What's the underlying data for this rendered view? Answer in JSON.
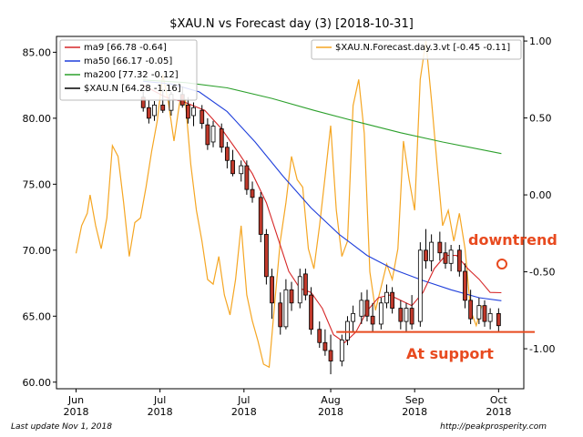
{
  "chart_data": {
    "type": "candlestick",
    "title": "$XAU.N vs Forecast day (3)  [2018-10-31]",
    "xlabel": "",
    "ylabel": "",
    "x_ticks": [
      {
        "label": "Jun\n2018",
        "date": "2018-06-01"
      },
      {
        "label": "Jul\n2018",
        "date": "2018-07-01"
      },
      {
        "label": "Jul\n2018",
        "date": "2018-07-31"
      },
      {
        "label": "Aug\n2018",
        "date": "2018-08-31"
      },
      {
        "label": "Sep\n2018",
        "date": "2018-09-30"
      },
      {
        "label": "Oct\n2018",
        "date": "2018-10-30"
      }
    ],
    "x_range": [
      "2018-05-25",
      "2018-11-08"
    ],
    "y_left": {
      "range": [
        59.5,
        86.2
      ],
      "ticks": [
        "60.00",
        "65.00",
        "70.00",
        "75.00",
        "80.00",
        "85.00"
      ]
    },
    "y_right": {
      "range": [
        -1.26,
        1.03
      ],
      "ticks": [
        "-1.00",
        "-0.50",
        "0.00",
        "0.50",
        "1.00"
      ]
    },
    "grid": false,
    "legend_left": [
      {
        "label": "ma9 [66.78 -0.64]",
        "color": "#d62728"
      },
      {
        "label": "ma50 [66.17 -0.05]",
        "color": "#1f3fdb"
      },
      {
        "label": "ma200 [77.32 -0.12]",
        "color": "#2ca02c"
      },
      {
        "label": "$XAU.N [64.28 -1.16]",
        "color": "#000000"
      }
    ],
    "legend_right": [
      {
        "label": "$XAU.N.Forecast.day.3.vt [-0.45 -0.11]",
        "color": "#f5a623"
      }
    ],
    "colors": {
      "ma9": "#d62728",
      "ma50": "#1f3fdb",
      "ma200": "#2ca02c",
      "forecast": "#f5a623",
      "candle_up": "#ffffff",
      "candle_down": "#c0392b",
      "annotation": "#e84a1f"
    },
    "annotations": [
      {
        "text": "downtrend",
        "color": "#e84a1f"
      },
      {
        "text": "At support",
        "color": "#e84a1f"
      }
    ],
    "support_level": 63.8,
    "candles": [
      {
        "date": "2018-06-25",
        "open": 81.6,
        "high": 82.0,
        "low": 80.5,
        "close": 80.8
      },
      {
        "date": "2018-06-27",
        "open": 80.8,
        "high": 81.4,
        "low": 79.6,
        "close": 80.0
      },
      {
        "date": "2018-06-29",
        "open": 80.2,
        "high": 81.3,
        "low": 79.8,
        "close": 81.0
      },
      {
        "date": "2018-07-02",
        "open": 81.0,
        "high": 82.2,
        "low": 80.4,
        "close": 80.6
      },
      {
        "date": "2018-07-05",
        "open": 80.6,
        "high": 82.0,
        "low": 80.2,
        "close": 81.8
      },
      {
        "date": "2018-07-09",
        "open": 81.8,
        "high": 82.4,
        "low": 80.8,
        "close": 81.0
      },
      {
        "date": "2018-07-11",
        "open": 81.0,
        "high": 81.6,
        "low": 79.6,
        "close": 80.0
      },
      {
        "date": "2018-07-13",
        "open": 80.2,
        "high": 81.2,
        "low": 79.4,
        "close": 80.8
      },
      {
        "date": "2018-07-16",
        "open": 80.6,
        "high": 81.0,
        "low": 79.2,
        "close": 79.6
      },
      {
        "date": "2018-07-18",
        "open": 79.5,
        "high": 80.0,
        "low": 77.6,
        "close": 78.0
      },
      {
        "date": "2018-07-20",
        "open": 78.2,
        "high": 79.8,
        "low": 77.8,
        "close": 79.4
      },
      {
        "date": "2018-07-23",
        "open": 79.2,
        "high": 79.6,
        "low": 77.4,
        "close": 77.8
      },
      {
        "date": "2018-07-25",
        "open": 77.8,
        "high": 78.2,
        "low": 76.2,
        "close": 76.8
      },
      {
        "date": "2018-07-27",
        "open": 76.8,
        "high": 77.6,
        "low": 75.6,
        "close": 75.8
      },
      {
        "date": "2018-07-30",
        "open": 75.8,
        "high": 76.8,
        "low": 75.2,
        "close": 76.4
      },
      {
        "date": "2018-08-01",
        "open": 76.4,
        "high": 76.8,
        "low": 74.2,
        "close": 74.6
      },
      {
        "date": "2018-08-03",
        "open": 74.6,
        "high": 75.2,
        "low": 73.6,
        "close": 74.0
      },
      {
        "date": "2018-08-06",
        "open": 74.0,
        "high": 74.4,
        "low": 70.6,
        "close": 71.2
      },
      {
        "date": "2018-08-08",
        "open": 71.2,
        "high": 71.6,
        "low": 67.4,
        "close": 68.0
      },
      {
        "date": "2018-08-10",
        "open": 68.0,
        "high": 68.6,
        "low": 64.8,
        "close": 66.0
      },
      {
        "date": "2018-08-13",
        "open": 66.0,
        "high": 66.8,
        "low": 63.6,
        "close": 64.2
      },
      {
        "date": "2018-08-15",
        "open": 64.2,
        "high": 67.8,
        "low": 64.0,
        "close": 67.0
      },
      {
        "date": "2018-08-17",
        "open": 67.0,
        "high": 67.6,
        "low": 65.4,
        "close": 66.0
      },
      {
        "date": "2018-08-20",
        "open": 66.0,
        "high": 68.6,
        "low": 65.6,
        "close": 68.0
      },
      {
        "date": "2018-08-22",
        "open": 68.2,
        "high": 68.6,
        "low": 66.2,
        "close": 66.6
      },
      {
        "date": "2018-08-24",
        "open": 66.6,
        "high": 67.2,
        "low": 63.6,
        "close": 64.0
      },
      {
        "date": "2018-08-27",
        "open": 64.0,
        "high": 64.6,
        "low": 62.6,
        "close": 63.0
      },
      {
        "date": "2018-08-29",
        "open": 63.0,
        "high": 64.0,
        "low": 62.0,
        "close": 62.4
      },
      {
        "date": "2018-08-31",
        "open": 62.4,
        "high": 63.6,
        "low": 60.6,
        "close": 61.6
      },
      {
        "date": "2018-09-04",
        "open": 61.6,
        "high": 63.6,
        "low": 61.2,
        "close": 63.2
      },
      {
        "date": "2018-09-06",
        "open": 63.2,
        "high": 65.0,
        "low": 62.8,
        "close": 64.6
      },
      {
        "date": "2018-09-08",
        "open": 64.6,
        "high": 65.8,
        "low": 63.8,
        "close": 65.2
      },
      {
        "date": "2018-09-11",
        "open": 65.0,
        "high": 66.8,
        "low": 64.4,
        "close": 66.2
      },
      {
        "date": "2018-09-13",
        "open": 66.2,
        "high": 67.0,
        "low": 64.6,
        "close": 65.0
      },
      {
        "date": "2018-09-15",
        "open": 65.0,
        "high": 66.0,
        "low": 63.8,
        "close": 64.4
      },
      {
        "date": "2018-09-18",
        "open": 64.4,
        "high": 66.4,
        "low": 64.0,
        "close": 66.0
      },
      {
        "date": "2018-09-20",
        "open": 66.0,
        "high": 67.4,
        "low": 65.6,
        "close": 66.8
      },
      {
        "date": "2018-09-22",
        "open": 66.8,
        "high": 67.2,
        "low": 65.2,
        "close": 65.6
      },
      {
        "date": "2018-09-25",
        "open": 65.6,
        "high": 66.2,
        "low": 64.0,
        "close": 64.6
      },
      {
        "date": "2018-09-27",
        "open": 64.6,
        "high": 66.0,
        "low": 63.8,
        "close": 65.6
      },
      {
        "date": "2018-09-29",
        "open": 65.6,
        "high": 66.6,
        "low": 64.0,
        "close": 64.4
      },
      {
        "date": "2018-10-02",
        "open": 64.6,
        "high": 70.6,
        "low": 64.2,
        "close": 70.0
      },
      {
        "date": "2018-10-04",
        "open": 70.0,
        "high": 71.6,
        "low": 68.6,
        "close": 69.2
      },
      {
        "date": "2018-10-06",
        "open": 69.2,
        "high": 71.2,
        "low": 68.4,
        "close": 70.6
      },
      {
        "date": "2018-10-09",
        "open": 70.6,
        "high": 71.4,
        "low": 69.2,
        "close": 69.8
      },
      {
        "date": "2018-10-11",
        "open": 69.8,
        "high": 70.6,
        "low": 68.6,
        "close": 69.0
      },
      {
        "date": "2018-10-13",
        "open": 69.0,
        "high": 70.4,
        "low": 68.4,
        "close": 70.0
      },
      {
        "date": "2018-10-16",
        "open": 70.0,
        "high": 70.4,
        "low": 68.0,
        "close": 68.4
      },
      {
        "date": "2018-10-18",
        "open": 68.4,
        "high": 69.0,
        "low": 65.6,
        "close": 66.2
      },
      {
        "date": "2018-10-20",
        "open": 66.2,
        "high": 67.0,
        "low": 64.4,
        "close": 64.8
      },
      {
        "date": "2018-10-23",
        "open": 64.8,
        "high": 66.4,
        "low": 64.4,
        "close": 65.8
      },
      {
        "date": "2018-10-25",
        "open": 65.8,
        "high": 66.2,
        "low": 64.2,
        "close": 64.6
      },
      {
        "date": "2018-10-27",
        "open": 64.6,
        "high": 65.6,
        "low": 64.0,
        "close": 65.2
      },
      {
        "date": "2018-10-30",
        "open": 65.2,
        "high": 65.6,
        "low": 63.8,
        "close": 64.28
      }
    ],
    "series": [
      {
        "key": "ma200",
        "axis": "left",
        "points": [
          [
            "2018-06-25",
            82.9
          ],
          [
            "2018-07-10",
            82.7
          ],
          [
            "2018-07-25",
            82.3
          ],
          [
            "2018-08-10",
            81.5
          ],
          [
            "2018-08-25",
            80.6
          ],
          [
            "2018-09-10",
            79.7
          ],
          [
            "2018-09-25",
            78.9
          ],
          [
            "2018-10-10",
            78.2
          ],
          [
            "2018-10-31",
            77.32
          ]
        ]
      },
      {
        "key": "ma50",
        "axis": "left",
        "points": [
          [
            "2018-06-25",
            82.8
          ],
          [
            "2018-07-05",
            82.6
          ],
          [
            "2018-07-15",
            82.0
          ],
          [
            "2018-07-25",
            80.5
          ],
          [
            "2018-08-04",
            78.2
          ],
          [
            "2018-08-14",
            75.6
          ],
          [
            "2018-08-24",
            73.2
          ],
          [
            "2018-09-03",
            71.2
          ],
          [
            "2018-09-13",
            69.6
          ],
          [
            "2018-09-23",
            68.5
          ],
          [
            "2018-10-03",
            67.7
          ],
          [
            "2018-10-13",
            67.0
          ],
          [
            "2018-10-23",
            66.4
          ],
          [
            "2018-10-31",
            66.17
          ]
        ]
      },
      {
        "key": "ma9",
        "axis": "left",
        "points": [
          [
            "2018-06-25",
            82.5
          ],
          [
            "2018-07-03",
            81.6
          ],
          [
            "2018-07-10",
            81.2
          ],
          [
            "2018-07-17",
            80.6
          ],
          [
            "2018-07-23",
            79.2
          ],
          [
            "2018-07-29",
            77.4
          ],
          [
            "2018-08-03",
            75.8
          ],
          [
            "2018-08-08",
            73.6
          ],
          [
            "2018-08-12",
            71.0
          ],
          [
            "2018-08-16",
            68.4
          ],
          [
            "2018-08-20",
            67.1
          ],
          [
            "2018-08-24",
            66.8
          ],
          [
            "2018-08-28",
            65.6
          ],
          [
            "2018-09-01",
            63.6
          ],
          [
            "2018-09-05",
            63.0
          ],
          [
            "2018-09-09",
            63.8
          ],
          [
            "2018-09-13",
            65.4
          ],
          [
            "2018-09-17",
            66.4
          ],
          [
            "2018-09-21",
            66.6
          ],
          [
            "2018-09-25",
            66.2
          ],
          [
            "2018-09-29",
            65.8
          ],
          [
            "2018-10-03",
            66.8
          ],
          [
            "2018-10-07",
            68.6
          ],
          [
            "2018-10-11",
            69.6
          ],
          [
            "2018-10-15",
            69.6
          ],
          [
            "2018-10-19",
            68.6
          ],
          [
            "2018-10-23",
            67.8
          ],
          [
            "2018-10-27",
            66.8
          ],
          [
            "2018-10-31",
            66.78
          ]
        ]
      },
      {
        "key": "forecast",
        "axis": "right",
        "points": [
          [
            "2018-06-01",
            -0.38
          ],
          [
            "2018-06-03",
            -0.2
          ],
          [
            "2018-06-05",
            -0.12
          ],
          [
            "2018-06-06",
            0.0
          ],
          [
            "2018-06-08",
            -0.2
          ],
          [
            "2018-06-10",
            -0.35
          ],
          [
            "2018-06-12",
            -0.15
          ],
          [
            "2018-06-14",
            0.32
          ],
          [
            "2018-06-16",
            0.25
          ],
          [
            "2018-06-18",
            -0.05
          ],
          [
            "2018-06-20",
            -0.4
          ],
          [
            "2018-06-22",
            -0.18
          ],
          [
            "2018-06-24",
            -0.15
          ],
          [
            "2018-06-26",
            0.05
          ],
          [
            "2018-06-28",
            0.28
          ],
          [
            "2018-06-30",
            0.48
          ],
          [
            "2018-07-02",
            0.78
          ],
          [
            "2018-07-04",
            0.6
          ],
          [
            "2018-07-06",
            0.35
          ],
          [
            "2018-07-08",
            0.6
          ],
          [
            "2018-07-10",
            0.62
          ],
          [
            "2018-07-12",
            0.2
          ],
          [
            "2018-07-14",
            -0.1
          ],
          [
            "2018-07-16",
            -0.3
          ],
          [
            "2018-07-18",
            -0.55
          ],
          [
            "2018-07-20",
            -0.58
          ],
          [
            "2018-07-22",
            -0.4
          ],
          [
            "2018-07-24",
            -0.65
          ],
          [
            "2018-07-26",
            -0.78
          ],
          [
            "2018-07-28",
            -0.55
          ],
          [
            "2018-07-30",
            -0.2
          ],
          [
            "2018-08-01",
            -0.65
          ],
          [
            "2018-08-03",
            -0.82
          ],
          [
            "2018-08-05",
            -0.95
          ],
          [
            "2018-08-07",
            -1.1
          ],
          [
            "2018-08-09",
            -1.12
          ],
          [
            "2018-08-11",
            -0.7
          ],
          [
            "2018-08-13",
            -0.3
          ],
          [
            "2018-08-15",
            -0.05
          ],
          [
            "2018-08-17",
            0.25
          ],
          [
            "2018-08-19",
            0.1
          ],
          [
            "2018-08-21",
            0.05
          ],
          [
            "2018-08-23",
            -0.35
          ],
          [
            "2018-08-25",
            -0.48
          ],
          [
            "2018-08-27",
            -0.2
          ],
          [
            "2018-08-29",
            0.12
          ],
          [
            "2018-08-31",
            0.45
          ],
          [
            "2018-09-02",
            -0.1
          ],
          [
            "2018-09-04",
            -0.4
          ],
          [
            "2018-09-06",
            -0.3
          ],
          [
            "2018-09-08",
            0.58
          ],
          [
            "2018-09-10",
            0.75
          ],
          [
            "2018-09-12",
            0.4
          ],
          [
            "2018-09-14",
            -0.5
          ],
          [
            "2018-09-16",
            -0.75
          ],
          [
            "2018-09-18",
            -0.6
          ],
          [
            "2018-09-20",
            -0.45
          ],
          [
            "2018-09-22",
            -0.55
          ],
          [
            "2018-09-24",
            -0.35
          ],
          [
            "2018-09-26",
            0.35
          ],
          [
            "2018-09-28",
            0.1
          ],
          [
            "2018-09-30",
            -0.1
          ],
          [
            "2018-10-02",
            0.75
          ],
          [
            "2018-10-04",
            1.0
          ],
          [
            "2018-10-06",
            0.62
          ],
          [
            "2018-10-08",
            0.2
          ],
          [
            "2018-10-10",
            -0.2
          ],
          [
            "2018-10-12",
            -0.1
          ],
          [
            "2018-10-14",
            -0.3
          ],
          [
            "2018-10-16",
            -0.12
          ],
          [
            "2018-10-18",
            -0.35
          ],
          [
            "2018-10-20",
            -0.75
          ],
          [
            "2018-10-22",
            -0.85
          ],
          [
            "2018-10-24",
            -0.72
          ]
        ]
      }
    ]
  },
  "footer": {
    "left": "Last update Nov  1, 2018",
    "right": "http://peakprosperity.com"
  }
}
